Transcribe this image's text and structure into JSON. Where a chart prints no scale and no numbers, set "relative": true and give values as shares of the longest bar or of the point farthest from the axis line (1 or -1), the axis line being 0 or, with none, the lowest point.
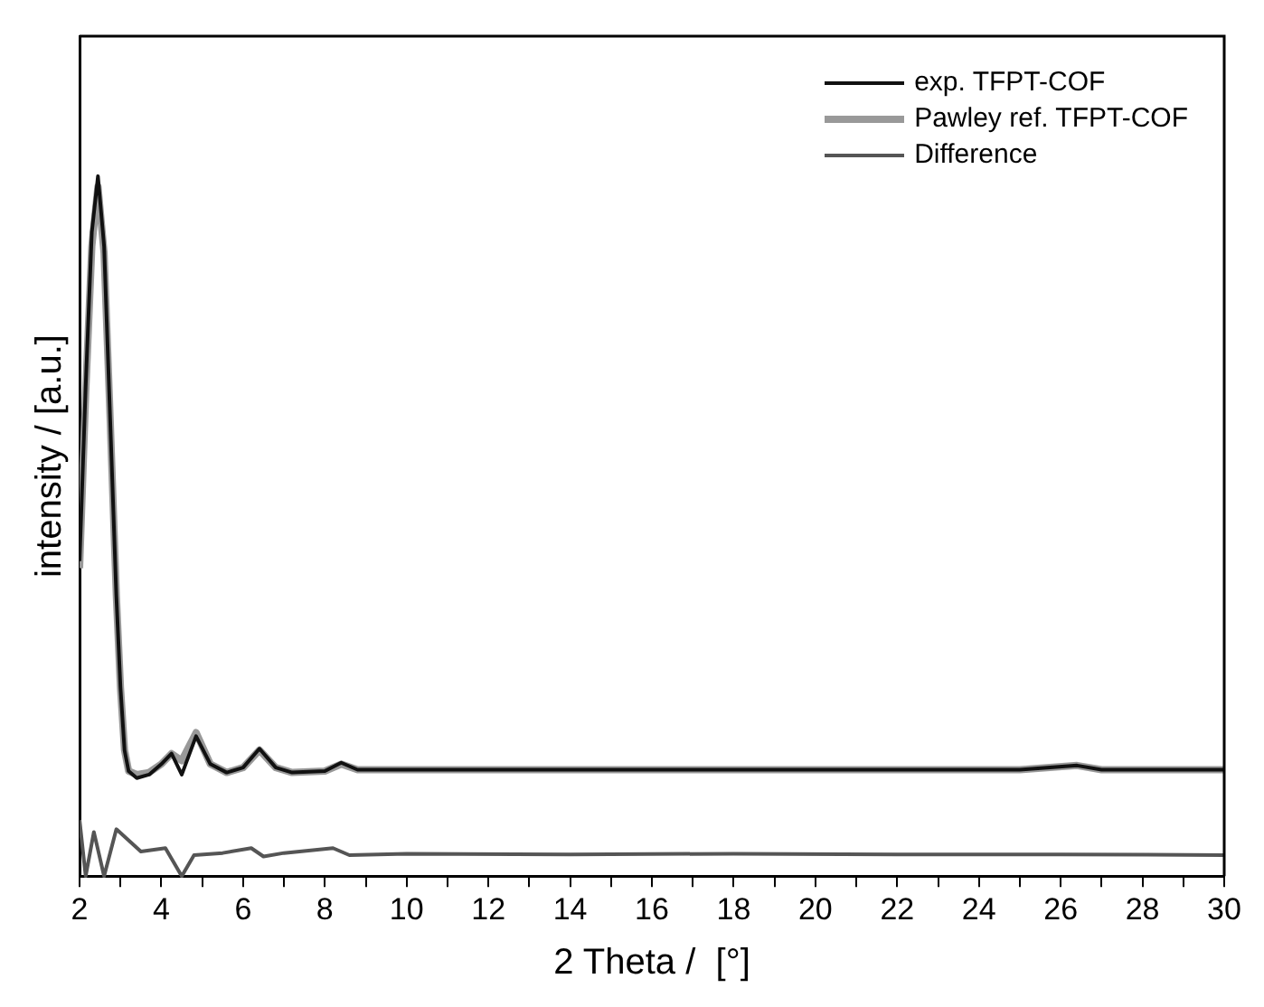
{
  "chart_data": {
    "type": "line",
    "relative": true,
    "xlabel": "2 Theta /  [°]",
    "ylabel": "intensity / [a.u.]",
    "xlim": [
      2,
      30
    ],
    "xticks": [
      2,
      {
        "value": 3,
        "label": null
      },
      4,
      {
        "value": 5,
        "label": null
      },
      6,
      {
        "value": 7,
        "label": null
      },
      8,
      {
        "value": 9,
        "label": null
      },
      10,
      {
        "value": 11,
        "label": null
      },
      12,
      {
        "value": 13,
        "label": null
      },
      14,
      {
        "value": 15,
        "label": null
      },
      16,
      {
        "value": 17,
        "label": null
      },
      18,
      {
        "value": 19,
        "label": null
      },
      20,
      {
        "value": 21,
        "label": null
      },
      22,
      {
        "value": 23,
        "label": null
      },
      24,
      {
        "value": 25,
        "label": null
      },
      26,
      {
        "value": 27,
        "label": null
      },
      28,
      {
        "value": 29,
        "label": null
      },
      30
    ],
    "grid": false,
    "legend": "top right",
    "marker": "none",
    "line_style": "solid",
    "series": [
      {
        "name": "exp. TFPT-COF",
        "color": "#111111",
        "x": [
          2,
          2.15,
          2.3,
          2.45,
          2.6,
          2.75,
          2.9,
          3,
          3.1,
          3.2,
          3.4,
          3.7,
          4,
          4.25,
          4.5,
          4.85,
          5.2,
          5.6,
          6,
          6.4,
          6.8,
          7.2,
          8,
          8.4,
          8.8,
          10,
          14,
          18,
          22,
          25,
          26.4,
          27,
          30
        ],
        "values": [
          0.45,
          0.7,
          0.92,
          1,
          0.9,
          0.65,
          0.4,
          0.27,
          0.18,
          0.15,
          0.14,
          0.145,
          0.16,
          0.175,
          0.145,
          0.2,
          0.16,
          0.148,
          0.155,
          0.182,
          0.155,
          0.148,
          0.15,
          0.162,
          0.152,
          0.152,
          0.152,
          0.152,
          0.152,
          0.152,
          0.158,
          0.152,
          0.152
        ]
      },
      {
        "name": "Pawley ref. TFPT-COF",
        "color": "#999999",
        "x": [
          2,
          2.15,
          2.3,
          2.45,
          2.6,
          2.75,
          2.9,
          3,
          3.1,
          3.2,
          3.4,
          3.7,
          4,
          4.25,
          4.5,
          4.85,
          5.2,
          5.6,
          6,
          6.4,
          6.8,
          7.2,
          8,
          8.4,
          8.8,
          10,
          14,
          18,
          22,
          25,
          26.4,
          27,
          30
        ],
        "values": [
          0.44,
          0.69,
          0.9,
          0.985,
          0.89,
          0.65,
          0.4,
          0.27,
          0.18,
          0.15,
          0.145,
          0.148,
          0.16,
          0.175,
          0.165,
          0.205,
          0.16,
          0.148,
          0.155,
          0.18,
          0.155,
          0.148,
          0.15,
          0.16,
          0.152,
          0.152,
          0.152,
          0.152,
          0.152,
          0.152,
          0.158,
          0.152,
          0.152
        ]
      },
      {
        "name": "Difference",
        "color": "#555555",
        "x": [
          2,
          2.15,
          2.35,
          2.6,
          2.9,
          3.5,
          4.1,
          4.5,
          4.8,
          5.5,
          6.2,
          6.5,
          7,
          8.2,
          8.6,
          10,
          14,
          18,
          22,
          26,
          30
        ],
        "values": [
          0.08,
          0,
          0.063,
          0,
          0.067,
          0.035,
          0.04,
          0,
          0.03,
          0.033,
          0.04,
          0.028,
          0.033,
          0.04,
          0.03,
          0.032,
          0.031,
          0.032,
          0.031,
          0.031,
          0.03
        ]
      }
    ]
  }
}
